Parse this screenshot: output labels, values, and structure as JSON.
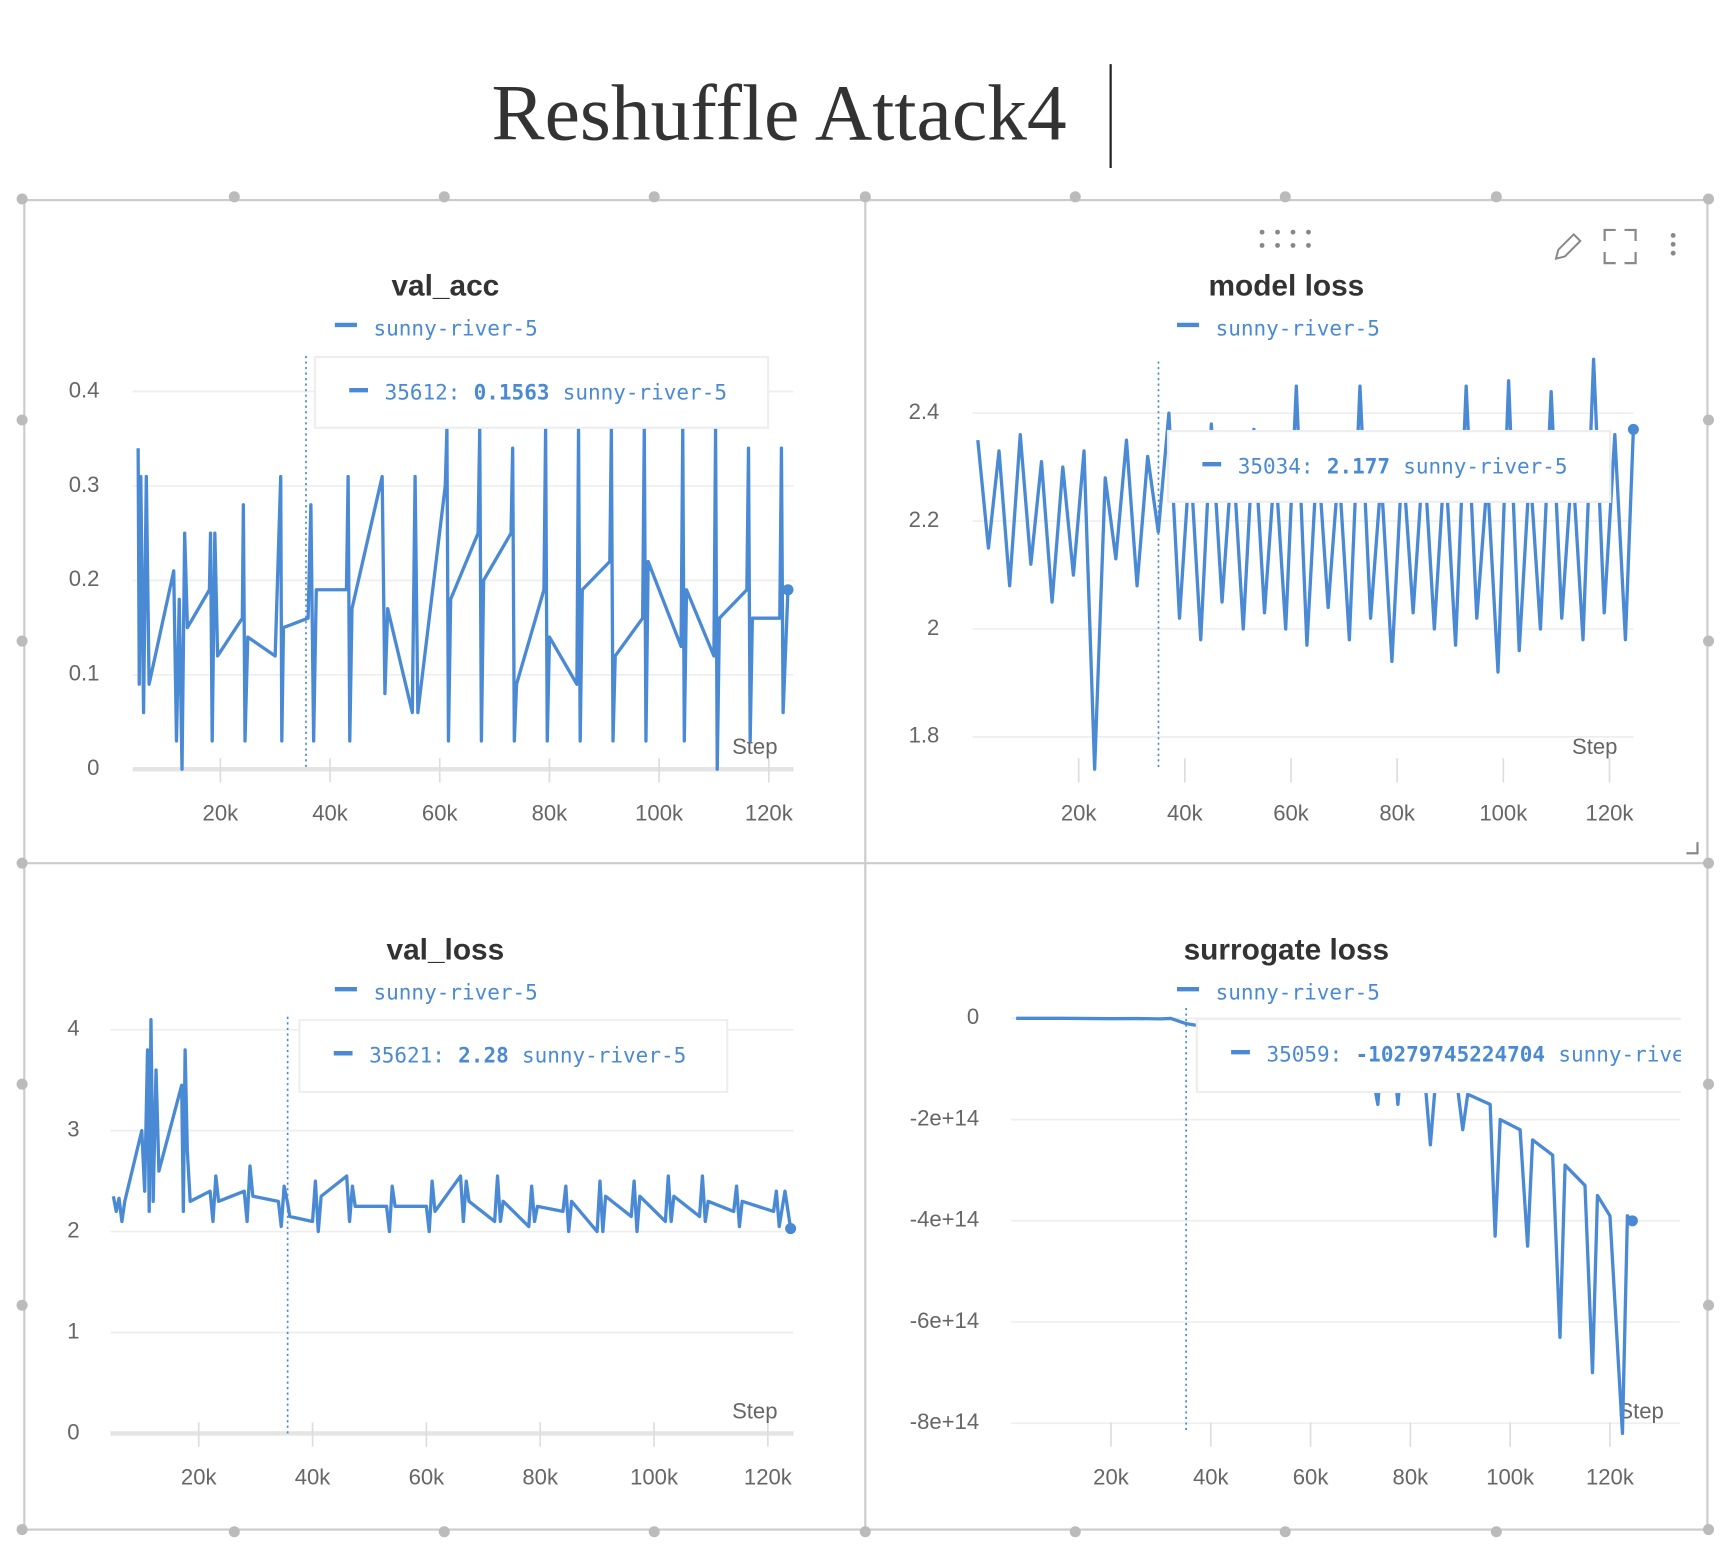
{
  "title": "Reshuffle Attack4",
  "chart_data": [
    {
      "type": "line",
      "title": "val_acc",
      "x_label": "Step",
      "grid": true,
      "series": [
        {
          "name": "sunny-river-5",
          "color": "#4a8ad4",
          "x": [
            5000,
            5200,
            5500,
            6000,
            6500,
            7000,
            11500,
            12000,
            12500,
            13000,
            13500,
            14000,
            18000,
            18200,
            18500,
            19000,
            19500,
            24000,
            24200,
            24500,
            25000,
            30000,
            31000,
            31200,
            31500,
            36000,
            36500,
            37000,
            37500,
            43000,
            43300,
            43600,
            44000,
            49500,
            50000,
            50500,
            55000,
            55500,
            56000,
            61000,
            61300,
            61600,
            62000,
            67000,
            67300,
            67600,
            68000,
            73000,
            73300,
            73600,
            74000,
            79000,
            79300,
            79600,
            80000,
            85000,
            85300,
            85600,
            86000,
            91000,
            91300,
            91600,
            92000,
            97000,
            97300,
            97600,
            98000,
            104000,
            104300,
            104600,
            105000,
            110000,
            110300,
            110600,
            111000,
            116000,
            116300,
            116600,
            117000,
            122000,
            122300,
            122600,
            123500
          ],
          "values": [
            0.34,
            0.09,
            0.31,
            0.06,
            0.31,
            0.09,
            0.21,
            0.03,
            0.18,
            0.0,
            0.25,
            0.15,
            0.19,
            0.25,
            0.03,
            0.25,
            0.12,
            0.16,
            0.28,
            0.03,
            0.14,
            0.12,
            0.31,
            0.03,
            0.15,
            0.16,
            0.28,
            0.03,
            0.19,
            0.19,
            0.31,
            0.03,
            0.17,
            0.31,
            0.08,
            0.17,
            0.06,
            0.31,
            0.06,
            0.3,
            0.36,
            0.03,
            0.18,
            0.25,
            0.36,
            0.03,
            0.2,
            0.25,
            0.34,
            0.03,
            0.09,
            0.19,
            0.36,
            0.03,
            0.14,
            0.09,
            0.36,
            0.03,
            0.19,
            0.22,
            0.36,
            0.03,
            0.12,
            0.16,
            0.36,
            0.03,
            0.22,
            0.13,
            0.36,
            0.03,
            0.19,
            0.12,
            0.36,
            0.0,
            0.16,
            0.19,
            0.34,
            0.03,
            0.16,
            0.16,
            0.34,
            0.06,
            0.19
          ]
        }
      ],
      "xlim": [
        4000,
        124500
      ],
      "ylim": [
        0,
        0.44
      ],
      "xticks": [
        {
          "value": 20000,
          "label": "20k"
        },
        {
          "value": 40000,
          "label": "40k"
        },
        {
          "value": 60000,
          "label": "60k"
        },
        {
          "value": 80000,
          "label": "80k"
        },
        {
          "value": 100000,
          "label": "100k"
        },
        {
          "value": 120000,
          "label": "120k"
        }
      ],
      "yticks": [
        0,
        0.1,
        0.2,
        0.3,
        0.4
      ],
      "tooltip": {
        "x": {
          "value": 35612,
          "label": "35612:"
        },
        "y": 0.1563
      }
    },
    {
      "type": "line",
      "title": "model loss",
      "x_label": "Step",
      "grid": true,
      "series": [
        {
          "name": "sunny-river-5",
          "color": "#4a8ad4",
          "x": [
            1000,
            3000,
            5000,
            7000,
            9000,
            11000,
            13000,
            15000,
            17000,
            19000,
            21000,
            23000,
            25000,
            27000,
            29000,
            31000,
            33000,
            35000,
            37000,
            39000,
            41000,
            43000,
            45000,
            47000,
            49000,
            51000,
            53000,
            55000,
            57000,
            59000,
            61000,
            63000,
            65000,
            67000,
            69000,
            71000,
            73000,
            75000,
            77000,
            79000,
            81000,
            83000,
            85000,
            87000,
            89000,
            91000,
            93000,
            95000,
            97000,
            99000,
            101000,
            103000,
            105000,
            107000,
            109000,
            111000,
            113000,
            115000,
            117000,
            119000,
            121000,
            123000,
            124500
          ],
          "values": [
            2.35,
            2.15,
            2.33,
            2.08,
            2.36,
            2.12,
            2.31,
            2.05,
            2.3,
            2.1,
            2.33,
            1.74,
            2.28,
            2.13,
            2.35,
            2.08,
            2.32,
            2.18,
            2.4,
            2.02,
            2.32,
            1.98,
            2.38,
            2.05,
            2.33,
            2.0,
            2.37,
            2.03,
            2.31,
            2.0,
            2.45,
            1.97,
            2.33,
            2.04,
            2.3,
            1.98,
            2.45,
            2.02,
            2.28,
            1.94,
            2.32,
            2.03,
            2.33,
            2.0,
            2.32,
            1.97,
            2.45,
            2.02,
            2.28,
            1.92,
            2.46,
            1.96,
            2.3,
            2.0,
            2.44,
            2.02,
            2.31,
            1.98,
            2.5,
            2.03,
            2.36,
            1.98,
            2.37
          ]
        }
      ],
      "xlim": [
        0,
        124500
      ],
      "ylim": [
        1.74,
        2.5
      ],
      "xticks": [
        {
          "value": 20000,
          "label": "20k"
        },
        {
          "value": 40000,
          "label": "40k"
        },
        {
          "value": 60000,
          "label": "60k"
        },
        {
          "value": 80000,
          "label": "80k"
        },
        {
          "value": 100000,
          "label": "100k"
        },
        {
          "value": 120000,
          "label": "120k"
        }
      ],
      "yticks": [
        1.8,
        2,
        2.2,
        2.4
      ],
      "tooltip": {
        "x": {
          "value": 35034,
          "label": "35034:"
        },
        "y": 2.177
      }
    },
    {
      "type": "line",
      "title": "val_loss",
      "x_label": "Step",
      "grid": true,
      "series": [
        {
          "name": "sunny-river-5",
          "color": "#4a8ad4",
          "x": [
            5000,
            5500,
            6000,
            6500,
            7000,
            10000,
            10500,
            11000,
            11300,
            11600,
            12000,
            12500,
            13000,
            17000,
            17300,
            17600,
            18000,
            18500,
            22000,
            22500,
            23000,
            23500,
            28000,
            28500,
            29000,
            29500,
            34000,
            34500,
            35000,
            35621,
            36000,
            40000,
            40500,
            41000,
            41500,
            46000,
            46500,
            47000,
            47500,
            53000,
            53500,
            54000,
            54500,
            60000,
            60500,
            61000,
            61500,
            66000,
            66500,
            67000,
            67500,
            72000,
            72500,
            73000,
            73500,
            78000,
            78500,
            79000,
            79500,
            84000,
            84500,
            85000,
            85500,
            90000,
            90500,
            91000,
            91500,
            96000,
            96500,
            97000,
            97500,
            102000,
            102500,
            103000,
            103500,
            108000,
            108500,
            109000,
            109500,
            114000,
            114500,
            115000,
            115500,
            121000,
            121500,
            122000,
            123000,
            124000
          ],
          "values": [
            2.35,
            2.2,
            2.33,
            2.1,
            2.3,
            3.0,
            2.4,
            3.8,
            2.2,
            4.1,
            2.3,
            3.6,
            2.6,
            3.45,
            2.2,
            3.8,
            2.8,
            2.3,
            2.4,
            2.1,
            2.55,
            2.3,
            2.4,
            2.1,
            2.65,
            2.35,
            2.3,
            2.05,
            2.45,
            2.28,
            2.15,
            2.1,
            2.5,
            2.0,
            2.35,
            2.55,
            2.1,
            2.45,
            2.25,
            2.25,
            2.0,
            2.45,
            2.25,
            2.25,
            2.0,
            2.5,
            2.2,
            2.55,
            2.1,
            2.5,
            2.3,
            2.1,
            2.55,
            2.1,
            2.3,
            2.05,
            2.45,
            2.1,
            2.25,
            2.2,
            2.45,
            2.0,
            2.3,
            2.0,
            2.5,
            2.0,
            2.35,
            2.15,
            2.5,
            2.0,
            2.35,
            2.1,
            2.55,
            2.1,
            2.35,
            2.15,
            2.55,
            2.1,
            2.3,
            2.2,
            2.45,
            2.05,
            2.3,
            2.2,
            2.4,
            2.05,
            2.4,
            2.03
          ]
        }
      ],
      "xlim": [
        4500,
        124500
      ],
      "ylim": [
        0,
        4.15
      ],
      "xticks": [
        {
          "value": 20000,
          "label": "20k"
        },
        {
          "value": 40000,
          "label": "40k"
        },
        {
          "value": 60000,
          "label": "60k"
        },
        {
          "value": 80000,
          "label": "80k"
        },
        {
          "value": 100000,
          "label": "100k"
        },
        {
          "value": 120000,
          "label": "120k"
        }
      ],
      "yticks": [
        0,
        1,
        2,
        3,
        4
      ],
      "tooltip": {
        "x": {
          "value": 35621,
          "label": "35621:"
        },
        "y": 2.28
      }
    },
    {
      "type": "line",
      "title": "surrogate loss",
      "x_label": "Step",
      "grid": true,
      "series": [
        {
          "name": "sunny-river-5",
          "color": "#4a8ad4",
          "x": [
            1000,
            10000,
            20000,
            25000,
            30000,
            32000,
            35059,
            38000,
            45000,
            55000,
            65000,
            72000,
            73500,
            74000,
            77000,
            77500,
            78000,
            83000,
            84000,
            85000,
            89500,
            90500,
            91500,
            96000,
            97000,
            98000,
            102000,
            103500,
            104500,
            108500,
            110000,
            111000,
            115000,
            116500,
            117500,
            120000,
            122500,
            123500,
            124500
          ],
          "values": [
            0,
            0,
            -500000000000.0,
            -300000000000.0,
            -1000000000000.0,
            -200000000000.0,
            -10279745224704,
            -15000000000000.0,
            -30000000000000.0,
            -50000000000000.0,
            -70000000000000.0,
            -90000000000000.0,
            -170000000000000.0,
            -100000000000000.0,
            -110000000000000.0,
            -170000000000000.0,
            -110000000000000.0,
            -130000000000000.0,
            -250000000000000.0,
            -130000000000000.0,
            -140000000000000.0,
            -220000000000000.0,
            -150000000000000.0,
            -170000000000000.0,
            -430000000000000.0,
            -200000000000000.0,
            -220000000000000.0,
            -450000000000000.0,
            -240000000000000.0,
            -270000000000000.0,
            -630000000000000.0,
            -290000000000000.0,
            -330000000000000.0,
            -700000000000000.0,
            -350000000000000.0,
            -390000000000000.0,
            -820000000000000.0,
            -390000000000000.0,
            -400000000000000.0
          ]
        }
      ],
      "xlim": [
        0,
        134000
      ],
      "ylim": [
        -820000000000000.0,
        25000000000000.0
      ],
      "xticks": [
        {
          "value": 20000,
          "label": "20k"
        },
        {
          "value": 40000,
          "label": "40k"
        },
        {
          "value": 60000,
          "label": "60k"
        },
        {
          "value": 80000,
          "label": "80k"
        },
        {
          "value": 100000,
          "label": "100k"
        },
        {
          "value": 120000,
          "label": "120k"
        }
      ],
      "yticks": [
        0,
        {
          "value": -200000000000000.0,
          "label": "-2e+14"
        },
        {
          "value": -400000000000000.0,
          "label": "-4e+14"
        },
        {
          "value": -600000000000000.0,
          "label": "-6e+14"
        },
        {
          "value": -800000000000000.0,
          "label": "-8e+14"
        }
      ],
      "tooltip": {
        "x": {
          "value": 35059,
          "label": "35059:"
        },
        "y": -10279745224704
      }
    }
  ]
}
